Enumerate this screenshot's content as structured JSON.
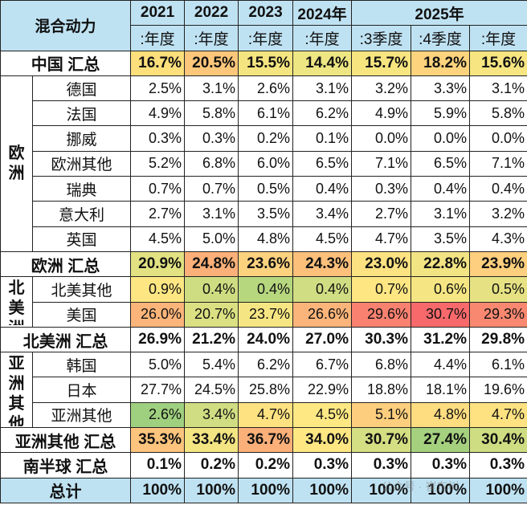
{
  "header": {
    "corner": "混合动力",
    "years": [
      "2021",
      "2022",
      "2023",
      "2024年",
      "2025年"
    ],
    "periods": [
      ":年度",
      ":年度",
      ":年度",
      ":年度",
      ":3季度",
      ":4季度",
      ":年度"
    ]
  },
  "rows": [
    {
      "type": "sum",
      "name": "中国 汇总",
      "values": [
        "16.7%",
        "20.5%",
        "15.5%",
        "14.4%",
        "15.7%",
        "18.2%",
        "15.6%"
      ],
      "colors": [
        "#fde07c",
        "#fcc77a",
        "#f5e580",
        "#ede683",
        "#f7e580",
        "#fdd37d",
        "#f6e581"
      ]
    },
    {
      "type": "item",
      "group": "欧洲",
      "groupSpan": 7,
      "name": "德国",
      "values": [
        "2.5%",
        "3.1%",
        "2.6%",
        "3.1%",
        "3.2%",
        "3.3%",
        "3.1%"
      ]
    },
    {
      "type": "item",
      "name": "法国",
      "values": [
        "4.9%",
        "5.8%",
        "6.1%",
        "6.2%",
        "4.9%",
        "5.9%",
        "5.8%"
      ]
    },
    {
      "type": "item",
      "name": "挪威",
      "values": [
        "0.3%",
        "0.3%",
        "0.2%",
        "0.1%",
        "0.0%",
        "0.0%",
        "0.0%"
      ]
    },
    {
      "type": "item",
      "name": "欧洲其他",
      "values": [
        "5.2%",
        "6.8%",
        "6.0%",
        "6.5%",
        "7.1%",
        "6.5%",
        "7.1%"
      ]
    },
    {
      "type": "item",
      "name": "瑞典",
      "values": [
        "0.7%",
        "0.7%",
        "0.5%",
        "0.4%",
        "0.3%",
        "0.4%",
        "0.4%"
      ]
    },
    {
      "type": "item",
      "name": "意大利",
      "values": [
        "2.7%",
        "3.1%",
        "3.5%",
        "3.4%",
        "2.7%",
        "3.1%",
        "3.2%"
      ]
    },
    {
      "type": "item",
      "name": "英国",
      "values": [
        "4.5%",
        "5.0%",
        "4.8%",
        "4.5%",
        "4.7%",
        "3.5%",
        "4.3%"
      ]
    },
    {
      "type": "sum",
      "name": "欧洲 汇总",
      "values": [
        "20.9%",
        "24.8%",
        "23.6%",
        "24.3%",
        "23.0%",
        "22.8%",
        "23.9%"
      ],
      "colors": [
        "#e2e283",
        "#fab078",
        "#fdd27f",
        "#fcc07b",
        "#fde282",
        "#f2e483",
        "#fdcf7e"
      ]
    },
    {
      "type": "item",
      "group": "北美洲",
      "groupSpan": 2,
      "name": "北美其他",
      "values": [
        "0.9%",
        "0.4%",
        "0.4%",
        "0.4%",
        "0.7%",
        "0.6%",
        "0.5%"
      ],
      "colors": [
        "#fee783",
        "#cfdd82",
        "#b7d77f",
        "#d0dd82",
        "#fee683",
        "#f5e683",
        "#e6e283"
      ]
    },
    {
      "type": "item",
      "name": "美国",
      "values": [
        "26.0%",
        "20.7%",
        "23.7%",
        "26.6%",
        "29.6%",
        "30.7%",
        "29.3%"
      ],
      "colors": [
        "#fbb57a",
        "#dbe082",
        "#f6e683",
        "#fbb479",
        "#f98170",
        "#f8696b",
        "#f98871"
      ]
    },
    {
      "type": "sum",
      "name": "北美洲 汇总",
      "values": [
        "26.9%",
        "21.2%",
        "24.0%",
        "27.0%",
        "30.3%",
        "31.2%",
        "29.8%"
      ]
    },
    {
      "type": "item",
      "group": "亚洲其他",
      "groupSpan": 3,
      "name": "韩国",
      "values": [
        "5.0%",
        "5.4%",
        "6.2%",
        "6.7%",
        "6.8%",
        "4.4%",
        "6.1%"
      ]
    },
    {
      "type": "item",
      "name": "日本",
      "values": [
        "27.7%",
        "24.5%",
        "25.8%",
        "22.9%",
        "18.8%",
        "18.1%",
        "19.6%"
      ]
    },
    {
      "type": "item",
      "name": "亚洲其他",
      "values": [
        "2.6%",
        "3.4%",
        "4.7%",
        "4.5%",
        "5.1%",
        "4.8%",
        "4.7%"
      ],
      "colors": [
        "#9fd07f",
        "#d1dd82",
        "#fee282",
        "#fee884",
        "#fcce7e",
        "#fedc80",
        "#fee282"
      ]
    },
    {
      "type": "sum",
      "name": "亚洲其他 汇总",
      "values": [
        "35.3%",
        "33.4%",
        "36.7%",
        "34.0%",
        "30.7%",
        "27.4%",
        "30.4%"
      ],
      "colors": [
        "#fcc47c",
        "#f4e583",
        "#fbaf79",
        "#fee783",
        "#d4de82",
        "#a5d17f",
        "#cfdd82"
      ]
    },
    {
      "type": "sum",
      "name": "南半球 汇总",
      "values": [
        "0.1%",
        "0.2%",
        "0.2%",
        "0.3%",
        "0.3%",
        "0.3%",
        "0.3%"
      ]
    },
    {
      "type": "total",
      "name": "总计",
      "values": [
        "100%",
        "100%",
        "100%",
        "100%",
        "100%",
        "100%",
        "100%"
      ]
    }
  ],
  "watermark": "公众号 · 崔东树"
}
